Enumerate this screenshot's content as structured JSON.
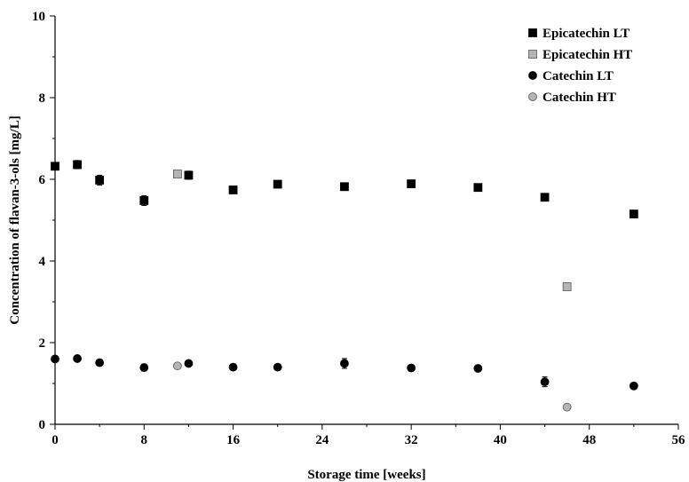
{
  "chart_data": {
    "type": "scatter",
    "xlabel": "Storage time [weeks]",
    "ylabel": "Concentration of flavan-3-ols [mg/L]",
    "xlim": [
      0,
      56
    ],
    "ylim": [
      0,
      10
    ],
    "xticks": [
      "0",
      "8",
      "16",
      "24",
      "32",
      "40",
      "48",
      "56"
    ],
    "yticks": [
      "0",
      "2",
      "4",
      "6",
      "8",
      "10"
    ],
    "grid": false,
    "legend_position": "top-right",
    "series": [
      {
        "name": "Epicatechin LT",
        "marker": "square",
        "color": "#000000",
        "points": [
          {
            "x": 0,
            "y": 6.32,
            "err": 0.05
          },
          {
            "x": 2,
            "y": 6.36,
            "err": 0.1
          },
          {
            "x": 4,
            "y": 5.98,
            "err": 0.12
          },
          {
            "x": 8,
            "y": 5.48,
            "err": 0.12
          },
          {
            "x": 12,
            "y": 6.1,
            "err": 0.1
          },
          {
            "x": 16,
            "y": 5.74,
            "err": 0.05
          },
          {
            "x": 20,
            "y": 5.88,
            "err": 0.04
          },
          {
            "x": 26,
            "y": 5.82,
            "err": 0.04
          },
          {
            "x": 32,
            "y": 5.89,
            "err": 0.04
          },
          {
            "x": 38,
            "y": 5.8,
            "err": 0.04
          },
          {
            "x": 44,
            "y": 5.56,
            "err": 0.04
          },
          {
            "x": 52,
            "y": 5.15,
            "err": 0.08
          }
        ]
      },
      {
        "name": "Epicatechin HT",
        "marker": "square",
        "color": "#b4b4b4",
        "points": [
          {
            "x": 11,
            "y": 6.13,
            "err": 0.04
          },
          {
            "x": 46,
            "y": 3.37,
            "err": 0.04
          }
        ]
      },
      {
        "name": "Catechin LT",
        "marker": "circle",
        "color": "#000000",
        "points": [
          {
            "x": 0,
            "y": 1.6,
            "err": 0.04
          },
          {
            "x": 2,
            "y": 1.61,
            "err": 0.04
          },
          {
            "x": 4,
            "y": 1.51,
            "err": 0.04
          },
          {
            "x": 8,
            "y": 1.39,
            "err": 0.08
          },
          {
            "x": 12,
            "y": 1.49,
            "err": 0.04
          },
          {
            "x": 16,
            "y": 1.4,
            "err": 0.04
          },
          {
            "x": 20,
            "y": 1.4,
            "err": 0.04
          },
          {
            "x": 26,
            "y": 1.49,
            "err": 0.12
          },
          {
            "x": 32,
            "y": 1.38,
            "err": 0.04
          },
          {
            "x": 38,
            "y": 1.37,
            "err": 0.04
          },
          {
            "x": 44,
            "y": 1.04,
            "err": 0.12
          },
          {
            "x": 52,
            "y": 0.94,
            "err": 0.04
          }
        ]
      },
      {
        "name": "Catechin HT",
        "marker": "circle",
        "color": "#b4b4b4",
        "points": [
          {
            "x": 11,
            "y": 1.43,
            "err": 0.04
          },
          {
            "x": 46,
            "y": 0.42,
            "err": 0.04
          }
        ]
      }
    ]
  }
}
